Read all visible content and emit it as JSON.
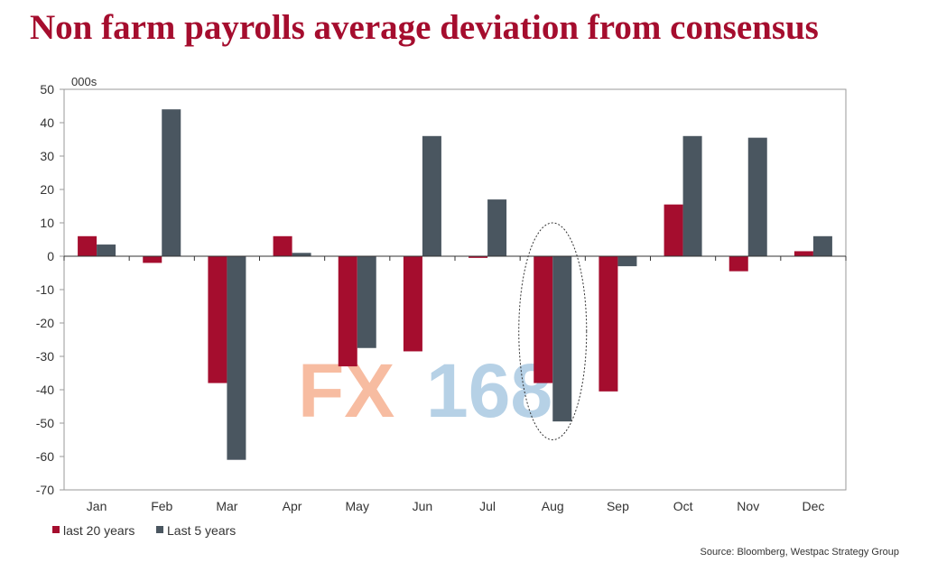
{
  "title": "Non farm payrolls average deviation from consensus",
  "source": "Source: Bloomberg, Westpac Strategy Group",
  "watermark": {
    "part1": "FX",
    "part2": "168"
  },
  "colors": {
    "title": "#a50d2e",
    "series1": "#a50d2e",
    "series2": "#4a5660",
    "watermark1": "#f4a582",
    "watermark2": "#9ec2dd"
  },
  "chart_data": {
    "type": "bar",
    "unit_label": "000s",
    "categories": [
      "Jan",
      "Feb",
      "Mar",
      "Apr",
      "May",
      "Jun",
      "Jul",
      "Aug",
      "Sep",
      "Oct",
      "Nov",
      "Dec"
    ],
    "series": [
      {
        "name": "last 20 years",
        "values": [
          6,
          -2,
          -38,
          6,
          -33,
          -28.5,
          -0.5,
          -38,
          -40.5,
          15.5,
          -4.5,
          1.5
        ]
      },
      {
        "name": "Last 5 years",
        "values": [
          3.5,
          44,
          -61,
          1,
          -27.5,
          36,
          17,
          -49.5,
          -3,
          36,
          35.5,
          6
        ]
      }
    ],
    "ylim": [
      -70,
      50
    ],
    "yticks": [
      50,
      40,
      30,
      20,
      10,
      0,
      -10,
      -20,
      -30,
      -40,
      -50,
      -60,
      -70
    ],
    "legend_position": "bottom-left",
    "highlight": "Aug",
    "grid": false
  }
}
